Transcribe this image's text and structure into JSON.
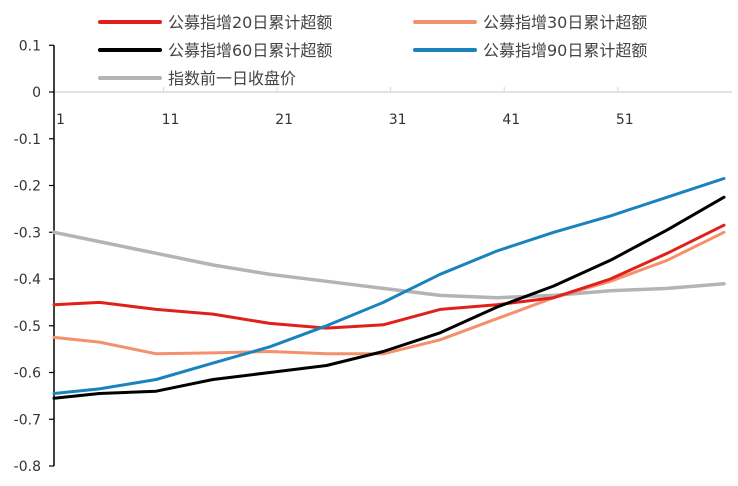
{
  "chart_data": {
    "type": "line",
    "title": "",
    "xlabel": "",
    "ylabel": "",
    "ylim": [
      -0.8,
      0.1
    ],
    "yticks": [
      "0.1",
      "0",
      "-0.1",
      "-0.2",
      "-0.3",
      "-0.4",
      "-0.5",
      "-0.6",
      "-0.7",
      "-0.8"
    ],
    "ytick_values": [
      0.1,
      0,
      -0.1,
      -0.2,
      -0.3,
      -0.4,
      -0.5,
      -0.6,
      -0.7,
      -0.8
    ],
    "xticks": [
      "1",
      "11",
      "21",
      "31",
      "41",
      "51"
    ],
    "xtick_values": [
      1,
      11,
      21,
      31,
      41,
      51
    ],
    "xlim": [
      1,
      60
    ],
    "legend_position": "top",
    "x": [
      1,
      5,
      10,
      15,
      20,
      25,
      30,
      35,
      40,
      45,
      50,
      55,
      60
    ],
    "series": [
      {
        "name": "公募指增20日累计超额",
        "color": "#e0201b",
        "values": [
          -0.455,
          -0.45,
          -0.465,
          -0.475,
          -0.495,
          -0.505,
          -0.498,
          -0.465,
          -0.455,
          -0.44,
          -0.4,
          -0.345,
          -0.285
        ]
      },
      {
        "name": "公募指增30日累计超额",
        "color": "#f4906c",
        "values": [
          -0.525,
          -0.535,
          -0.56,
          -0.558,
          -0.555,
          -0.56,
          -0.56,
          -0.53,
          -0.485,
          -0.44,
          -0.405,
          -0.36,
          -0.3
        ]
      },
      {
        "name": "公募指增60日累计超额",
        "color": "#000000",
        "values": [
          -0.655,
          -0.645,
          -0.64,
          -0.615,
          -0.6,
          -0.585,
          -0.555,
          -0.515,
          -0.46,
          -0.415,
          -0.36,
          -0.295,
          -0.225
        ]
      },
      {
        "name": "公募指增90日累计超额",
        "color": "#1a82bd",
        "values": [
          -0.645,
          -0.635,
          -0.615,
          -0.58,
          -0.545,
          -0.5,
          -0.45,
          -0.39,
          -0.34,
          -0.3,
          -0.265,
          -0.225,
          -0.185
        ]
      },
      {
        "name": "指数前一日收盘价",
        "color": "#b4b4b4",
        "values": [
          -0.3,
          -0.32,
          -0.345,
          -0.37,
          -0.39,
          -0.405,
          -0.42,
          -0.435,
          -0.44,
          -0.435,
          -0.425,
          -0.42,
          -0.41
        ]
      }
    ]
  }
}
